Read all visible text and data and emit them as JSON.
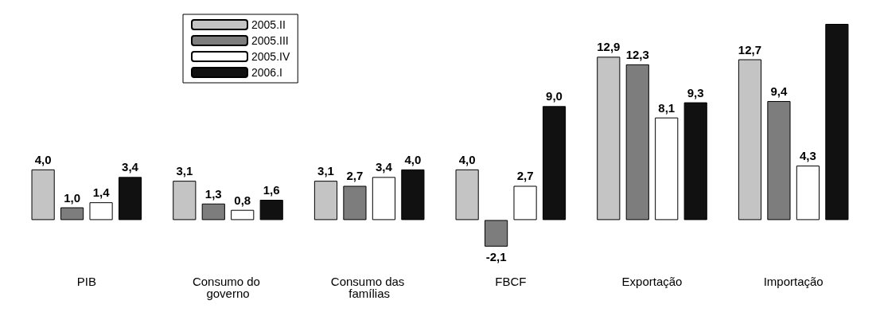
{
  "chart_data": {
    "type": "bar",
    "categories": [
      "PIB",
      "Consumo do governo",
      "Consumo das famílias",
      "FBCF",
      "Exportação",
      "Importação"
    ],
    "series": [
      {
        "name": "2005.II",
        "color": "#c4c4c4",
        "values": [
          4.0,
          3.1,
          3.1,
          4.0,
          12.9,
          12.7
        ],
        "value_labels": [
          "4,0",
          "3,1",
          "3,1",
          "4,0",
          "12,9",
          "12,7"
        ]
      },
      {
        "name": "2005.III",
        "color": "#7d7d7d",
        "values": [
          1.0,
          1.3,
          2.7,
          -2.1,
          12.3,
          9.4
        ],
        "value_labels": [
          "1,0",
          "1,3",
          "2,7",
          "-2,1",
          "12,3",
          "9,4"
        ]
      },
      {
        "name": "2005.IV",
        "color": "#ffffff",
        "values": [
          1.4,
          0.8,
          3.4,
          2.7,
          8.1,
          4.3
        ],
        "value_labels": [
          "1,4",
          "0,8",
          "3,4",
          "2,7",
          "8,1",
          "4,3"
        ]
      },
      {
        "name": "2006.I",
        "color": "#111111",
        "values": [
          3.4,
          1.6,
          4.0,
          9.0,
          9.3,
          15.5
        ],
        "value_labels": [
          "3,4",
          "1,6",
          "4,0",
          "9,0",
          "9,3",
          null
        ]
      }
    ],
    "legend": "top left"
  }
}
